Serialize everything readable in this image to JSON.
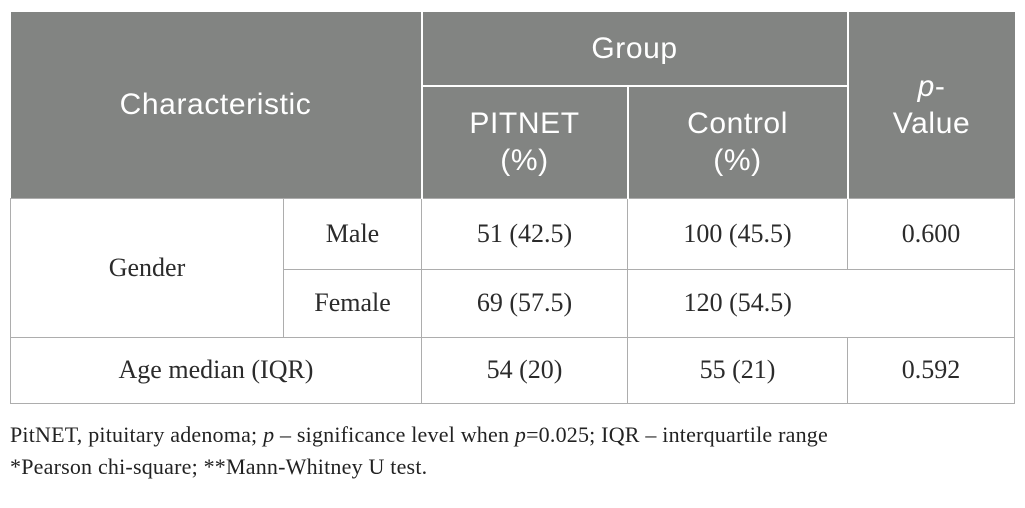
{
  "table": {
    "header": {
      "characteristic": "Characteristic",
      "group": "Group",
      "pitnet": "PITNET\n(%)",
      "control": "Control\n(%)",
      "p_value": {
        "p": "p",
        "dash": "-",
        "value": "Value"
      }
    },
    "rows": {
      "gender": {
        "label": "Gender",
        "male": {
          "label": "Male",
          "pitnet": "51 (42.5)",
          "control": "100 (45.5)",
          "p_value": "0.600"
        },
        "female": {
          "label": "Female",
          "pitnet": "69 (57.5)",
          "control": "120 (54.5)",
          "p_value": ""
        }
      },
      "age": {
        "label": "Age median (IQR)",
        "pitnet": "54 (20)",
        "control": "55 (21)",
        "p_value": "0.592"
      }
    }
  },
  "footnote": {
    "line1": [
      "PitNET, pituitary adenoma; ",
      "p",
      " – significance level when ",
      "p",
      "=0.025; IQR – interquartile range"
    ],
    "line2": "*Pearson chi-square; **Mann-Whitney U test."
  },
  "colors": {
    "header_bg": "#828482",
    "header_text": "#ffffff",
    "body_text": "#2b2b2b",
    "border": "#adadad",
    "footnote_text": "#222222"
  }
}
